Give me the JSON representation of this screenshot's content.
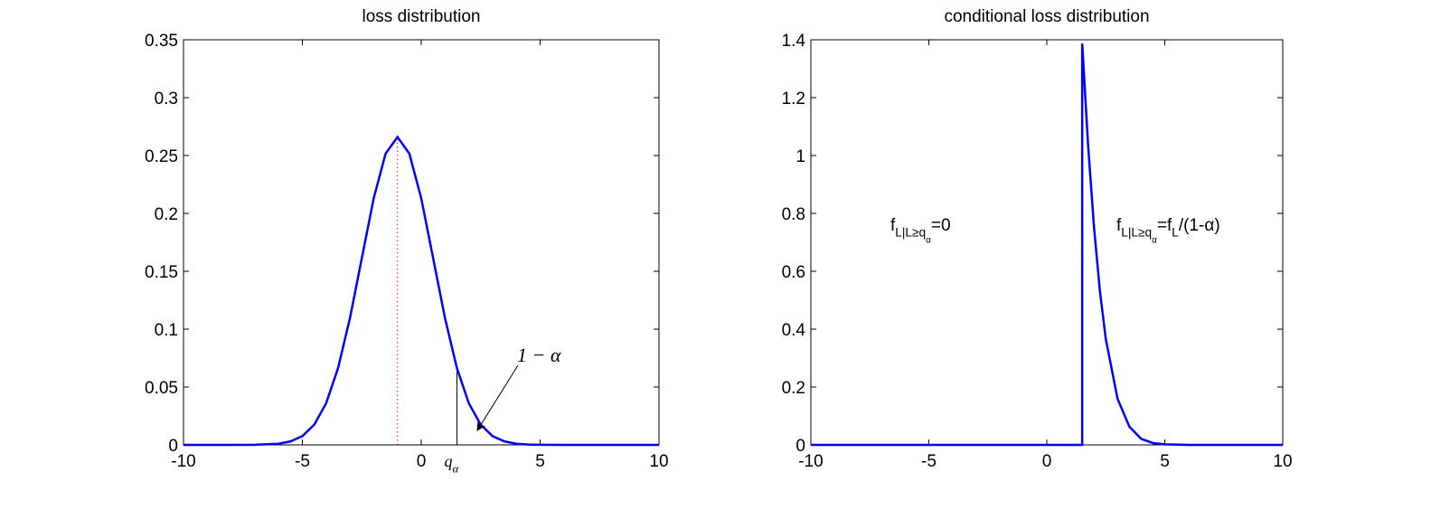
{
  "chart_data": [
    {
      "type": "line",
      "title": "loss distribution",
      "x": [
        -10,
        -8,
        -7,
        -6,
        -5.5,
        -5,
        -4.5,
        -4,
        -3.5,
        -3,
        -2.5,
        -2,
        -1.5,
        -1,
        -0.5,
        0,
        0.5,
        1,
        1.5,
        2,
        2.5,
        3,
        3.5,
        4,
        4.5,
        5,
        6,
        8,
        10
      ],
      "series": [
        {
          "color": "#0000ff",
          "values": [
            0,
            0,
            0.0001,
            0.001,
            0.003,
            0.0076,
            0.0175,
            0.036,
            0.0663,
            0.1094,
            0.1613,
            0.213,
            0.2516,
            0.266,
            0.2516,
            0.213,
            0.1613,
            0.1094,
            0.0663,
            0.036,
            0.0175,
            0.0076,
            0.003,
            0.001,
            0.0003,
            0.0001,
            0,
            0,
            0
          ]
        }
      ],
      "vlines": [
        {
          "x": -1,
          "y": 0.266,
          "color": "#ff0000",
          "dotted": true
        },
        {
          "x": 1.5,
          "y": 0.0663,
          "color": "#000000",
          "dotted": false
        }
      ],
      "x_annotation": [
        {
          "text": "q",
          "level": 0
        },
        {
          "text": "α",
          "level": 1
        }
      ],
      "arrow_annotation": [
        {
          "text": "1 − α",
          "level": 0
        }
      ],
      "xlim": [
        -10,
        10
      ],
      "xticks": [
        -10,
        -5,
        0,
        5,
        10
      ],
      "ylim": [
        0,
        0.35
      ],
      "yticks": [
        0,
        0.05,
        0.1,
        0.15,
        0.2,
        0.25,
        0.3,
        0.35
      ],
      "grid": false
    },
    {
      "type": "line",
      "title": "conditional loss distribution",
      "x": [
        -10,
        1.5,
        1.5,
        1.75,
        2,
        2.25,
        2.5,
        3,
        3.5,
        4,
        4.5,
        5,
        6,
        10
      ],
      "series": [
        {
          "color": "#0000ff",
          "values": [
            0,
            0,
            1.387,
            1.036,
            0.753,
            0.532,
            0.366,
            0.159,
            0.063,
            0.021,
            0.0063,
            0.002,
            0,
            0
          ]
        }
      ],
      "annotations": [
        [
          {
            "text": "f",
            "level": 0
          },
          {
            "text": "L|L≥q",
            "level": 1
          },
          {
            "text": "α",
            "level": 2
          },
          {
            "text": "=0",
            "level": 0
          }
        ],
        [
          {
            "text": "f",
            "level": 0
          },
          {
            "text": "L|L≥q",
            "level": 1
          },
          {
            "text": "α",
            "level": 2
          },
          {
            "text": "=f",
            "level": 0
          },
          {
            "text": "L",
            "level": 1
          },
          {
            "text": "/(1-α)",
            "level": 0
          }
        ]
      ],
      "xlim": [
        -10,
        10
      ],
      "xticks": [
        -10,
        -5,
        0,
        5,
        10
      ],
      "ylim": [
        0,
        1.4
      ],
      "yticks": [
        0,
        0.2,
        0.4,
        0.6,
        0.8,
        1,
        1.2,
        1.4
      ],
      "grid": false
    }
  ]
}
